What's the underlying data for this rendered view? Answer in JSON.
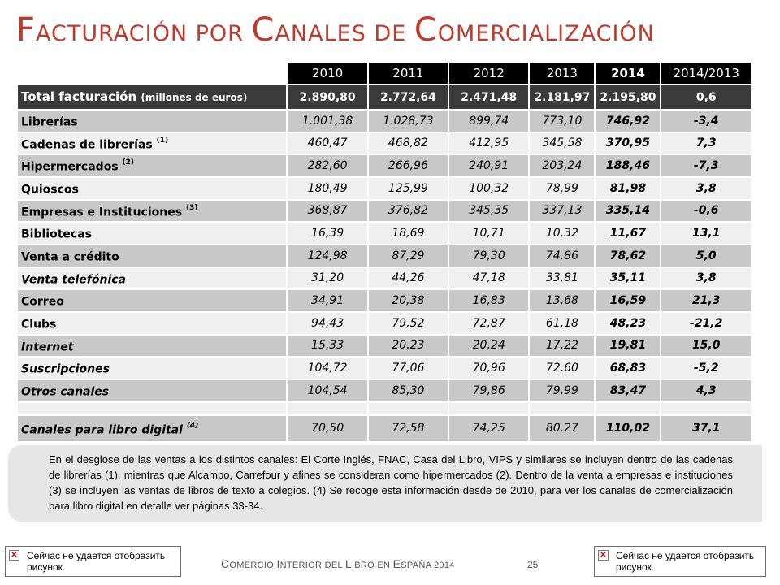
{
  "title": {
    "c1": "F",
    "r1": "acturación por ",
    "c2": "C",
    "r2": "anales de ",
    "c3": "C",
    "r3": "omercialización"
  },
  "table": {
    "years": [
      "2010",
      "2011",
      "2012",
      "2013",
      "2014",
      "2014/2013"
    ],
    "total": {
      "label": "Total facturación",
      "unit": "(millones de euros)",
      "values": [
        "2.890,80",
        "2.772,64",
        "2.471,48",
        "2.181,97",
        "2.195,80",
        "0,6"
      ]
    },
    "rows": [
      {
        "label": "Librerías",
        "note": "",
        "values": [
          "1.001,38",
          "1.028,73",
          "899,74",
          "773,10",
          "746,92",
          "-3,4"
        ]
      },
      {
        "label": "Cadenas de librerías",
        "note": "(1)",
        "values": [
          "460,47",
          "468,82",
          "412,95",
          "345,58",
          "370,95",
          "7,3"
        ]
      },
      {
        "label": "Hipermercados",
        "note": "(2)",
        "values": [
          "282,60",
          "266,96",
          "240,91",
          "203,24",
          "188,46",
          "-7,3"
        ]
      },
      {
        "label": "Quioscos",
        "note": "",
        "values": [
          "180,49",
          "125,99",
          "100,32",
          "78,99",
          "81,98",
          "3,8"
        ]
      },
      {
        "label": "Empresas e Instituciones",
        "note": "(3)",
        "values": [
          "368,87",
          "376,82",
          "345,35",
          "337,13",
          "335,14",
          "-0,6"
        ]
      },
      {
        "label": "Bibliotecas",
        "note": "",
        "values": [
          "16,39",
          "18,69",
          "10,71",
          "10,32",
          "11,67",
          "13,1"
        ]
      },
      {
        "label": "Venta a crédito",
        "note": "",
        "values": [
          "124,98",
          "87,29",
          "79,30",
          "74,86",
          "78,62",
          "5,0"
        ]
      },
      {
        "label": "Venta telefónica",
        "note": "",
        "values": [
          "31,20",
          "44,26",
          "47,18",
          "33,81",
          "35,11",
          "3,8"
        ]
      },
      {
        "label": "Correo",
        "note": "",
        "values": [
          "34,91",
          "20,38",
          "16,83",
          "13,68",
          "16,59",
          "21,3"
        ]
      },
      {
        "label": "Clubs",
        "note": "",
        "values": [
          "94,43",
          "79,52",
          "72,87",
          "61,18",
          "48,23",
          "-21,2"
        ]
      },
      {
        "label": "Internet",
        "note": "",
        "values": [
          "15,33",
          "20,23",
          "20,24",
          "17,22",
          "19,81",
          "15,0"
        ]
      },
      {
        "label": "Suscripciones",
        "note": "",
        "values": [
          "104,72",
          "77,06",
          "70,96",
          "72,60",
          "68,83",
          "-5,2"
        ]
      },
      {
        "label": "Otros canales",
        "note": "",
        "values": [
          "104,54",
          "85,30",
          "79,86",
          "79,99",
          "83,47",
          "4,3"
        ]
      }
    ],
    "digital": {
      "label": "Canales para libro digital",
      "note": "(4)",
      "values": [
        "70,50",
        "72,58",
        "74,25",
        "80,27",
        "110,02",
        "37,1"
      ]
    }
  },
  "note_text": "En el desglose de las ventas a los distintos canales: El Corte Inglés, FNAC, Casa del Libro, VIPS y similares se incluyen dentro de las cadenas de librerías (1), mientras que Alcampo, Carrefour y afines se consideran como hipermercados (2). Dentro de la venta a empresas e instituciones (3) se incluyen las ventas de libros de texto a colegios. (4) Se recoge esta información desde de 2010, para ver los canales de comercialización para libro digital en detalle ver páginas 33-34.",
  "missing_image_text": "Сейчас не удается отобразить рисунок.",
  "footer": {
    "c1": "C",
    "r1": "omercio ",
    "c2": "I",
    "r2": "nterior del ",
    "c3": "L",
    "r3": "ibro en ",
    "c4": "E",
    "r4": "spaña 2014"
  },
  "page_number": "25",
  "colors": {
    "title": "#c0392b",
    "header": "#000000",
    "total_row": "#3b3b3b",
    "row_dark": "#c8c8c8",
    "row_light": "#efefef",
    "note_bg": "#e6e6e6"
  }
}
